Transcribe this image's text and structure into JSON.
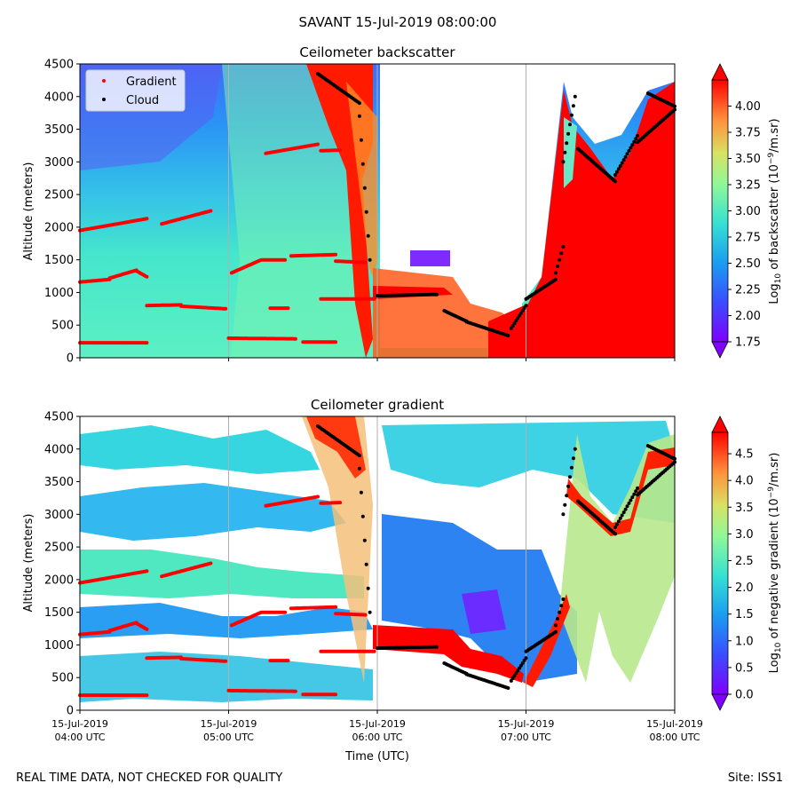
{
  "figure": {
    "suptitle": "SAVANT 15-Jul-2019 08:00:00",
    "footer_left": "REAL TIME DATA, NOT CHECKED FOR QUALITY",
    "footer_right": "Site: ISS1",
    "xlabel": "Time (UTC)",
    "x_ticks": [
      {
        "date": "15-Jul-2019",
        "time": "04:00 UTC",
        "t": 0
      },
      {
        "date": "15-Jul-2019",
        "time": "05:00 UTC",
        "t": 1
      },
      {
        "date": "15-Jul-2019",
        "time": "06:00 UTC",
        "t": 2
      },
      {
        "date": "15-Jul-2019",
        "time": "07:00 UTC",
        "t": 3
      },
      {
        "date": "15-Jul-2019",
        "time": "08:00 UTC",
        "t": 4
      }
    ],
    "colors": {
      "gradient_marker": "#ff0000",
      "cloud_marker": "#000000",
      "colormap": "rainbow"
    }
  },
  "chart_data": [
    {
      "type": "heatmap",
      "title": "Ceilometer backscatter",
      "ylabel": "Altitude (meters)",
      "xlim_hours": [
        0,
        4
      ],
      "ylim": [
        0,
        4500
      ],
      "y_ticks": [
        0,
        500,
        1000,
        1500,
        2000,
        2500,
        3000,
        3500,
        4000,
        4500
      ],
      "colorbar": {
        "label_main": "Log",
        "label_sub": "10",
        "label_rest": " of backscatter (10",
        "label_sup": "−9",
        "label_end": "/m.sr)",
        "range": [
          1.75,
          4.25
        ],
        "ticks": [
          "1.75",
          "2.00",
          "2.25",
          "2.50",
          "2.75",
          "3.00",
          "3.25",
          "3.50",
          "3.75",
          "4.00"
        ]
      },
      "legend": {
        "position": "upper-left",
        "entries": [
          "Gradient",
          "Cloud"
        ]
      }
    },
    {
      "type": "heatmap",
      "title": "Ceilometer gradient",
      "ylabel": "Altitude (meters)",
      "xlim_hours": [
        0,
        4
      ],
      "ylim": [
        0,
        4500
      ],
      "y_ticks": [
        0,
        500,
        1000,
        1500,
        2000,
        2500,
        3000,
        3500,
        4000,
        4500
      ],
      "colorbar": {
        "label_main": "Log",
        "label_sub": "10",
        "label_rest": " of negative gradient (10",
        "label_sup": "−9",
        "label_end": "/m.sr)",
        "range": [
          0,
          4.9
        ],
        "ticks": [
          "0.0",
          "0.5",
          "1.0",
          "1.5",
          "2.0",
          "2.5",
          "3.0",
          "3.5",
          "4.0",
          "4.5"
        ]
      }
    }
  ],
  "series": {
    "gradient_layers_m": [
      {
        "t0": 0.0,
        "t1": 0.45,
        "y0": 1950,
        "y1": 2130
      },
      {
        "t0": 0.55,
        "t1": 0.88,
        "y0": 2050,
        "y1": 2250
      },
      {
        "t0": 0.0,
        "t1": 0.2,
        "y0": 1160,
        "y1": 1200
      },
      {
        "t0": 0.2,
        "t1": 0.38,
        "y0": 1220,
        "y1": 1340
      },
      {
        "t0": 0.38,
        "t1": 0.45,
        "y0": 1330,
        "y1": 1240
      },
      {
        "t0": 0.45,
        "t1": 0.68,
        "y0": 800,
        "y1": 810
      },
      {
        "t0": 0.68,
        "t1": 0.98,
        "y0": 790,
        "y1": 750
      },
      {
        "t0": 0.0,
        "t1": 0.45,
        "y0": 230,
        "y1": 230
      },
      {
        "t0": 1.02,
        "t1": 1.22,
        "y0": 1300,
        "y1": 1500
      },
      {
        "t0": 1.23,
        "t1": 1.38,
        "y0": 1500,
        "y1": 1500
      },
      {
        "t0": 1.42,
        "t1": 1.72,
        "y0": 1560,
        "y1": 1580
      },
      {
        "t0": 1.72,
        "t1": 1.92,
        "y0": 1480,
        "y1": 1460
      },
      {
        "t0": 1.0,
        "t1": 1.45,
        "y0": 300,
        "y1": 290
      },
      {
        "t0": 1.5,
        "t1": 1.72,
        "y0": 240,
        "y1": 240
      },
      {
        "t0": 1.62,
        "t1": 1.98,
        "y0": 900,
        "y1": 900
      },
      {
        "t0": 1.25,
        "t1": 1.6,
        "y0": 3130,
        "y1": 3270
      },
      {
        "t0": 1.62,
        "t1": 1.75,
        "y0": 3170,
        "y1": 3180
      },
      {
        "t0": 1.28,
        "t1": 1.4,
        "y0": 760,
        "y1": 760
      }
    ],
    "cloud_layers_m": [
      {
        "t0": 1.6,
        "t1": 1.88,
        "y0": 4350,
        "y1": 3900
      },
      {
        "t0": 1.88,
        "t1": 1.95,
        "y0": 3700,
        "y1": 1500
      },
      {
        "t0": 2.0,
        "t1": 2.4,
        "y0": 950,
        "y1": 970
      },
      {
        "t0": 2.45,
        "t1": 2.6,
        "y0": 720,
        "y1": 560
      },
      {
        "t0": 2.6,
        "t1": 2.88,
        "y0": 550,
        "y1": 340
      },
      {
        "t0": 2.9,
        "t1": 3.0,
        "y0": 450,
        "y1": 800
      },
      {
        "t0": 3.0,
        "t1": 3.2,
        "y0": 900,
        "y1": 1200
      },
      {
        "t0": 3.2,
        "t1": 3.25,
        "y0": 1300,
        "y1": 1700
      },
      {
        "t0": 3.25,
        "t1": 3.33,
        "y0": 3000,
        "y1": 4000
      },
      {
        "t0": 3.35,
        "t1": 3.6,
        "y0": 3200,
        "y1": 2700
      },
      {
        "t0": 3.6,
        "t1": 3.75,
        "y0": 2800,
        "y1": 3400
      },
      {
        "t0": 3.75,
        "t1": 4.0,
        "y0": 3300,
        "y1": 3800
      },
      {
        "t0": 3.82,
        "t1": 4.0,
        "y0": 4050,
        "y1": 3850
      }
    ]
  }
}
